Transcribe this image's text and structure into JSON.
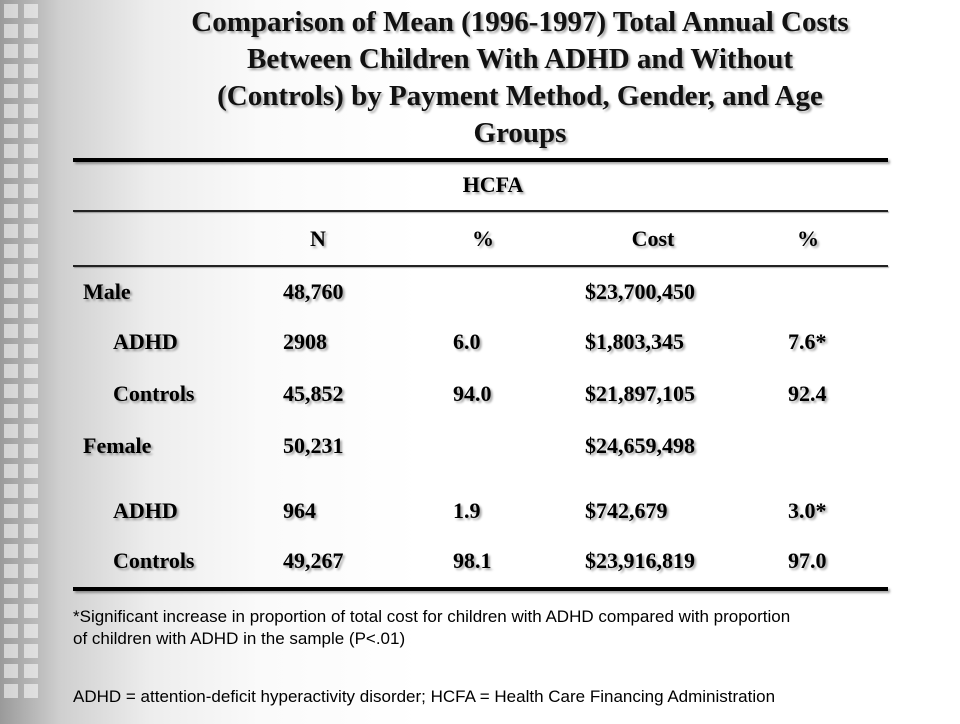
{
  "title_lines": [
    "Comparison of Mean (1996-1997) Total Annual Costs",
    "Between Children With ADHD and Without",
    "(Controls) by Payment Method, Gender, and Age",
    "Groups"
  ],
  "table": {
    "group_header": "HCFA",
    "columns": [
      "N",
      "%",
      "Cost",
      "%"
    ],
    "rows": [
      {
        "label": "Male",
        "n": "48,760",
        "pct1": "",
        "cost": "$23,700,450",
        "pct2": ""
      },
      {
        "label": "ADHD",
        "n": "2908",
        "pct1": "6.0",
        "cost": "$1,803,345",
        "pct2": "7.6*"
      },
      {
        "label": "Controls",
        "n": "45,852",
        "pct1": "94.0",
        "cost": "$21,897,105",
        "pct2": "92.4"
      },
      {
        "label": "Female",
        "n": "50,231",
        "pct1": "",
        "cost": "$24,659,498",
        "pct2": ""
      },
      {
        "label": "ADHD",
        "n": "964",
        "pct1": "1.9",
        "cost": "$742,679",
        "pct2": "3.0*"
      },
      {
        "label": "Controls",
        "n": "49,267",
        "pct1": "98.1",
        "cost": "$23,916,819",
        "pct2": "97.0"
      }
    ]
  },
  "footnote": {
    "line1": "*Significant increase in proportion of total cost for children with ADHD compared with proportion",
    "line2": "of children with ADHD in the sample (P<.01)",
    "abbrev": "ADHD = attention-deficit hyperactivity disorder; HCFA = Health Care Financing Administration"
  }
}
